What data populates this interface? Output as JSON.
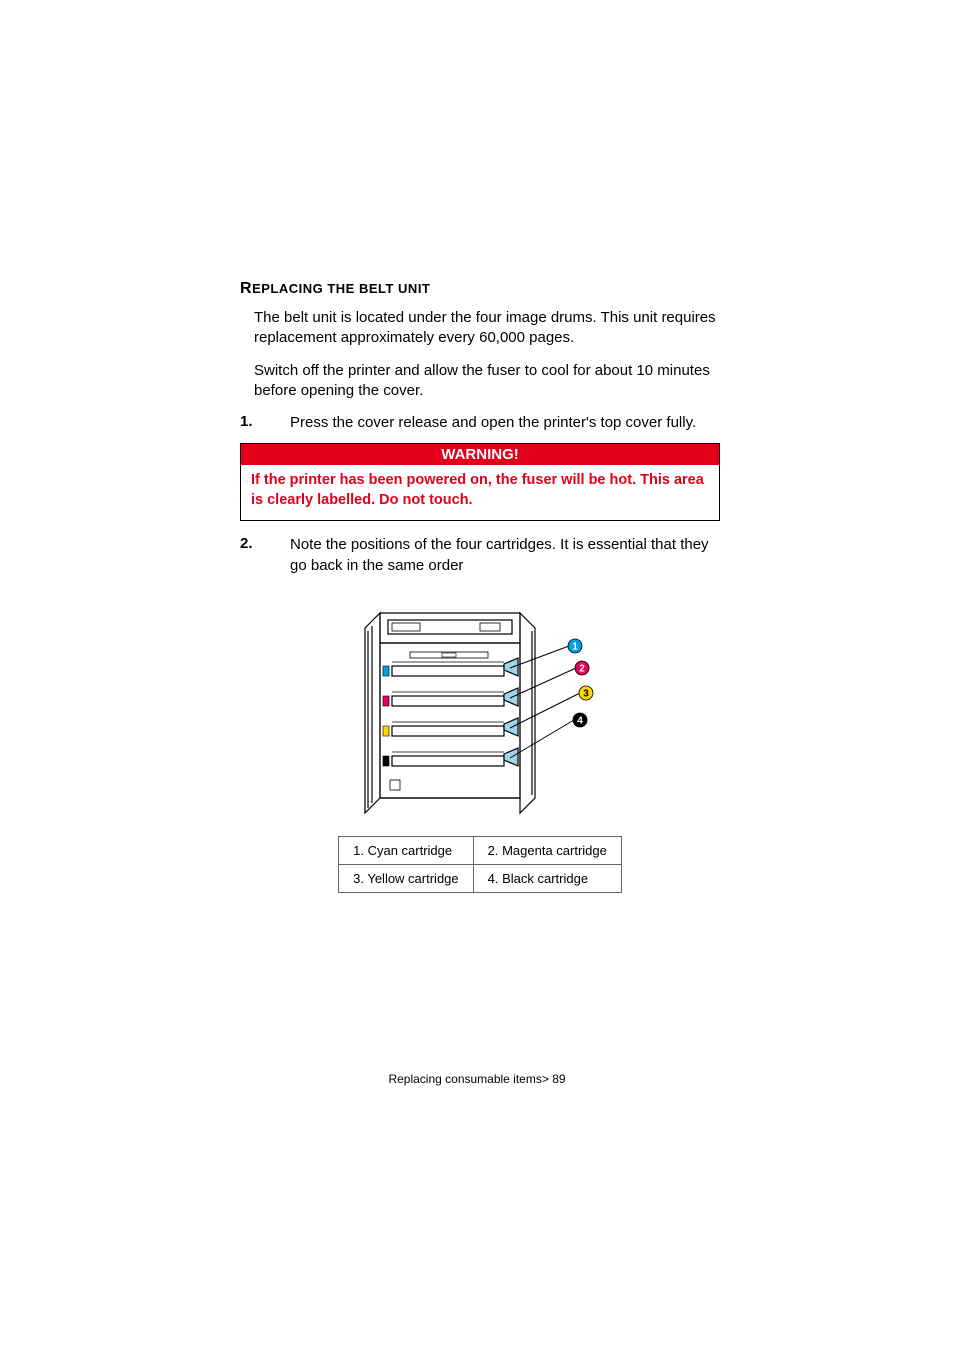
{
  "heading": {
    "first_letter": "R",
    "rest": "EPLACING THE BELT UNIT"
  },
  "paragraphs": {
    "p1": "The belt unit is located under the four image drums. This unit requires replacement approximately every 60,000 pages.",
    "p2": "Switch off the printer and allow the fuser to cool for about 10 minutes before opening the cover."
  },
  "steps": {
    "s1_num": "1.",
    "s1_text": "Press the cover release and open the printer's top cover fully.",
    "s2_num": "2.",
    "s2_text": "Note the positions of the four cartridges. It is essential that they go back in the same order"
  },
  "warning": {
    "title": "WARNING!",
    "body": "If the printer has been powered on, the fuser will be hot. This area is clearly labelled. Do not touch."
  },
  "legend": {
    "c1": "1. Cyan cartridge",
    "c2": "2. Magenta cartridge",
    "c3": "3. Yellow cartridge",
    "c4": "4. Black cartridge"
  },
  "footer": "Replacing consumable items> 89",
  "diagram": {
    "type": "technical-line-drawing",
    "description": "Top view of open printer showing four cartridge slots with numbered callout leaders",
    "colors": {
      "stroke": "#000000",
      "lever_fill": "#9ed3e8",
      "callout_1_fill": "#00a0df",
      "callout_2_fill": "#e5005b",
      "callout_3_fill": "#ffd500",
      "callout_4_fill": "#000000",
      "slot_cyan": "#00a0df",
      "slot_magenta": "#e5005b",
      "slot_yellow": "#ffd500",
      "slot_black": "#000000",
      "callout_text": "#ffffff",
      "callout_3_text": "#000000"
    },
    "callouts": [
      "1",
      "2",
      "3",
      "4"
    ],
    "stroke_width": 1.2,
    "callout_radius": 7
  }
}
